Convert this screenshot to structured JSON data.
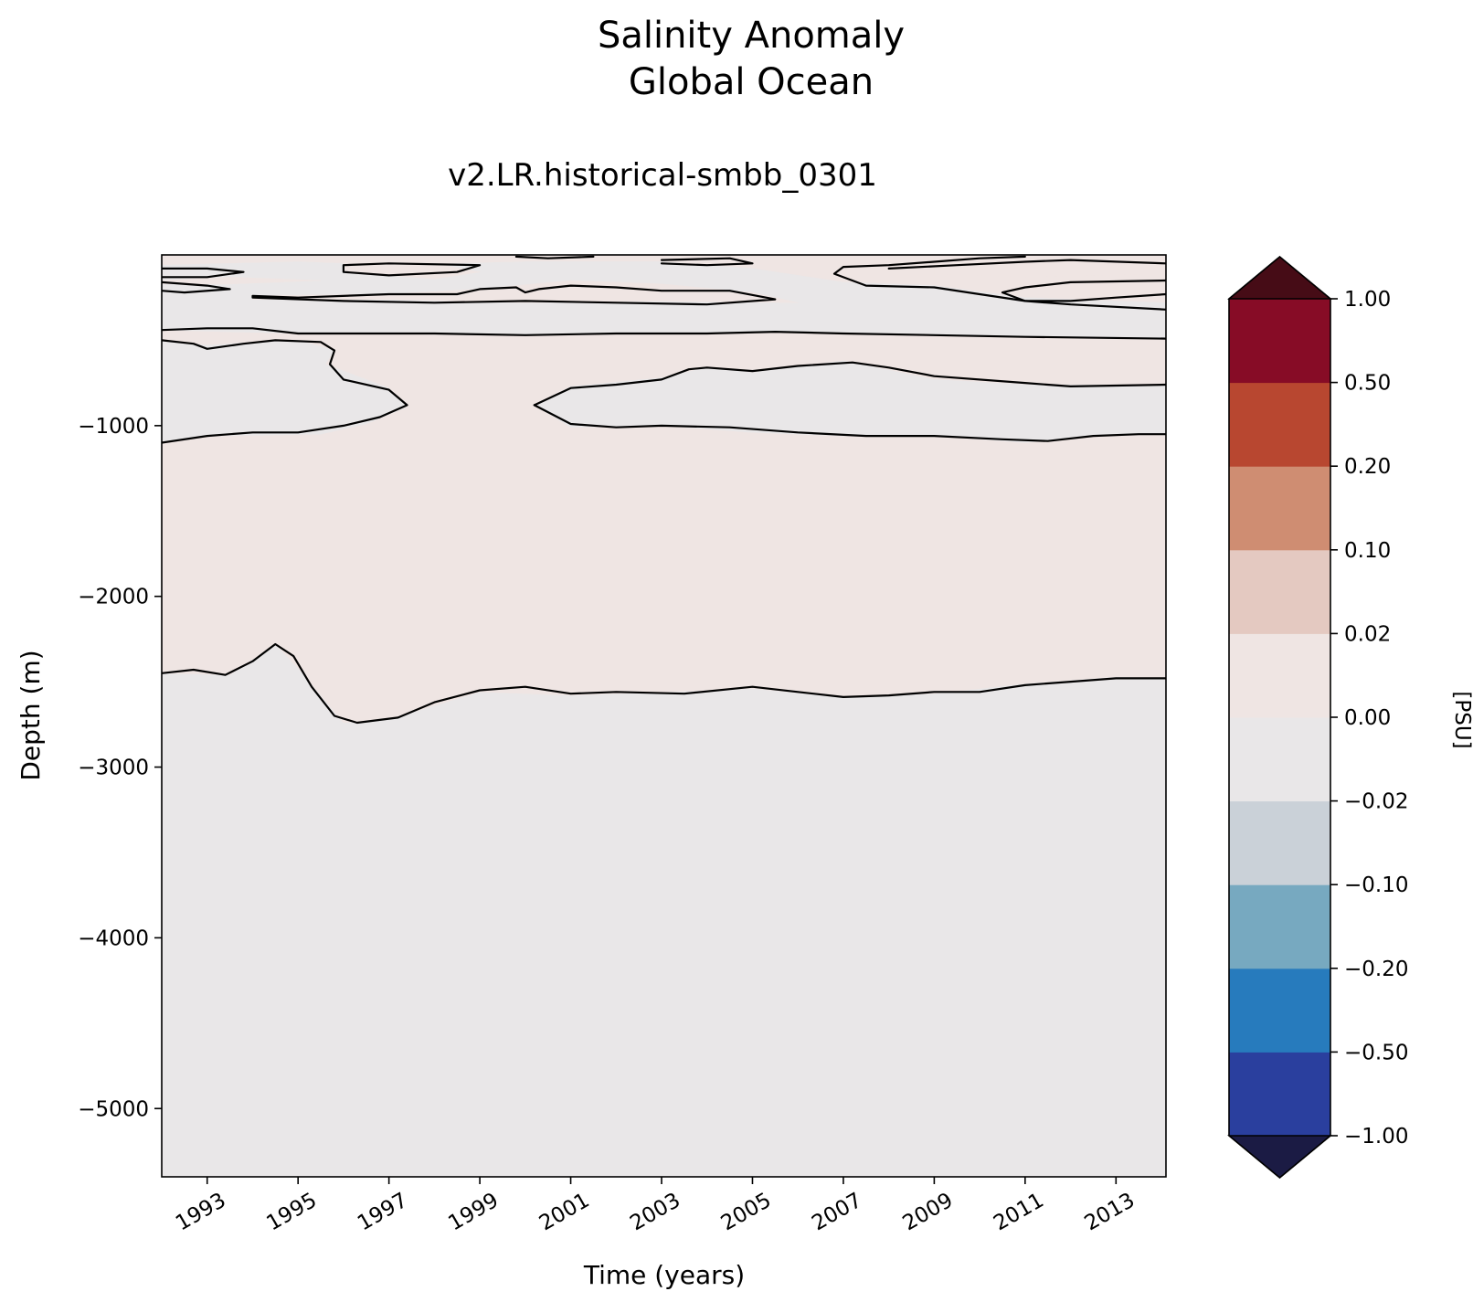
{
  "chart_data": {
    "type": "contour",
    "title_lines": [
      "Salinity Anomaly",
      "Global Ocean"
    ],
    "subtitle": "v2.LR.historical-smbb_0301",
    "xlabel": "Time (years)",
    "ylabel": "Depth (m)",
    "xlim": [
      1992.0,
      2014.1
    ],
    "ylim": [
      -5400,
      0
    ],
    "xticks": [
      1993,
      1995,
      1997,
      1999,
      2001,
      2003,
      2005,
      2007,
      2009,
      2011,
      2013
    ],
    "xtick_labels": [
      "1993",
      "1995",
      "1997",
      "1999",
      "2001",
      "2003",
      "2005",
      "2007",
      "2009",
      "2011",
      "2013"
    ],
    "yticks": [
      -1000,
      -2000,
      -3000,
      -4000,
      -5000
    ],
    "ytick_labels": [
      "−1000",
      "−2000",
      "−3000",
      "−4000",
      "−5000"
    ],
    "regions": [
      {
        "sign": "positive",
        "color": "#efe5e3",
        "points": [
          [
            1992.0,
            0
          ],
          [
            2014.1,
            0
          ],
          [
            2014.1,
            -2480
          ],
          [
            2013.0,
            -2470
          ],
          [
            2011.0,
            -2510
          ],
          [
            2009.0,
            -2570
          ],
          [
            2007.0,
            -2590
          ],
          [
            2005.0,
            -2540
          ],
          [
            2003.0,
            -2560
          ],
          [
            2001.0,
            -2580
          ],
          [
            1999.0,
            -2560
          ],
          [
            1997.0,
            -2720
          ],
          [
            1996.0,
            -2740
          ],
          [
            1995.0,
            -2420
          ],
          [
            1994.5,
            -2280
          ],
          [
            1993.5,
            -2460
          ],
          [
            1992.0,
            -2450
          ]
        ]
      },
      {
        "sign": "negative",
        "color": "#e9e7e8",
        "points": [
          [
            1992.0,
            -500
          ],
          [
            1993.0,
            -530
          ],
          [
            1994.5,
            -500
          ],
          [
            1995.0,
            -500
          ],
          [
            1995.8,
            -560
          ],
          [
            1995.6,
            -640
          ],
          [
            1997.0,
            -780
          ],
          [
            1997.4,
            -890
          ],
          [
            1996.5,
            -990
          ],
          [
            1995.5,
            -1050
          ],
          [
            1993.0,
            -1060
          ],
          [
            1992.0,
            -1100
          ]
        ]
      },
      {
        "sign": "negative",
        "color": "#e9e7e8",
        "points": [
          [
            2000.2,
            -880
          ],
          [
            2001.0,
            -770
          ],
          [
            2003.0,
            -720
          ],
          [
            2004.0,
            -660
          ],
          [
            2005.0,
            -690
          ],
          [
            2007.0,
            -620
          ],
          [
            2009.0,
            -730
          ],
          [
            2011.0,
            -760
          ],
          [
            2014.1,
            -760
          ],
          [
            2014.1,
            -1050
          ],
          [
            2013.0,
            -1050
          ],
          [
            2011.0,
            -1100
          ],
          [
            2009.0,
            -1060
          ],
          [
            2007.0,
            -1060
          ],
          [
            2005.0,
            -1040
          ],
          [
            2003.0,
            -1000
          ],
          [
            2001.0,
            -1010
          ],
          [
            2000.2,
            -880
          ]
        ]
      },
      {
        "sign": "negative",
        "color": "#e9e7e8",
        "points": [
          [
            1992.0,
            -440
          ],
          [
            1995.0,
            -460
          ],
          [
            2000.0,
            -470
          ],
          [
            2005.0,
            -450
          ],
          [
            2009.0,
            -470
          ],
          [
            2014.1,
            -490
          ],
          [
            2014.1,
            -280
          ],
          [
            2011.0,
            -250
          ],
          [
            2009.0,
            -180
          ],
          [
            2007.0,
            -160
          ],
          [
            2005.0,
            -80
          ],
          [
            2003.0,
            -40
          ],
          [
            2000.0,
            -40
          ],
          [
            1997.0,
            -60
          ],
          [
            1995.0,
            -40
          ],
          [
            1992.0,
            -60
          ]
        ]
      },
      {
        "sign": "positive",
        "color": "#efe5e3",
        "points": [
          [
            1994.0,
            -240
          ],
          [
            1997.0,
            -230
          ],
          [
            1999.0,
            -200
          ],
          [
            2001.0,
            -150
          ],
          [
            2003.0,
            -170
          ],
          [
            2005.0,
            -220
          ],
          [
            2006.0,
            -280
          ],
          [
            2003.0,
            -270
          ],
          [
            2000.0,
            -280
          ],
          [
            1997.0,
            -260
          ],
          [
            1994.0,
            -260
          ]
        ]
      },
      {
        "sign": "positive",
        "color": "#efe5e3",
        "points": [
          [
            2011.5,
            -210
          ],
          [
            2012.5,
            -170
          ],
          [
            2014.1,
            -150
          ],
          [
            2014.1,
            -210
          ],
          [
            2012.5,
            -230
          ],
          [
            2011.5,
            -230
          ]
        ]
      },
      {
        "sign": "positive",
        "color": "#efe5e3",
        "points": [
          [
            1996.0,
            -40
          ],
          [
            1998.0,
            -50
          ],
          [
            1999.0,
            -100
          ],
          [
            1998.0,
            -140
          ],
          [
            1996.0,
            -100
          ]
        ]
      },
      {
        "sign": "positive",
        "color": "#efe5e3",
        "points": [
          [
            2009.0,
            -60
          ],
          [
            2011.0,
            -50
          ],
          [
            2014.1,
            -60
          ],
          [
            2014.1,
            -110
          ],
          [
            2011.0,
            -130
          ],
          [
            2009.0,
            -110
          ]
        ]
      },
      {
        "sign": "positive",
        "color": "#efe5e3",
        "points": [
          [
            1992.0,
            -150
          ],
          [
            1993.5,
            -130
          ],
          [
            1995.5,
            -150
          ],
          [
            1993.5,
            -170
          ],
          [
            1992.0,
            -170
          ]
        ]
      }
    ],
    "contour_lines": [
      [
        [
          1992.0,
          -2450
        ],
        [
          1992.7,
          -2430
        ],
        [
          1993.4,
          -2460
        ],
        [
          1994.0,
          -2380
        ],
        [
          1994.5,
          -2280
        ],
        [
          1994.9,
          -2350
        ],
        [
          1995.3,
          -2530
        ],
        [
          1995.8,
          -2700
        ],
        [
          1996.3,
          -2740
        ],
        [
          1997.2,
          -2710
        ],
        [
          1998.0,
          -2620
        ],
        [
          1999.0,
          -2550
        ],
        [
          2000.0,
          -2530
        ],
        [
          2001.0,
          -2570
        ],
        [
          2002.0,
          -2560
        ],
        [
          2003.5,
          -2570
        ],
        [
          2005.0,
          -2530
        ],
        [
          2006.0,
          -2560
        ],
        [
          2007.0,
          -2590
        ],
        [
          2008.0,
          -2580
        ],
        [
          2009.0,
          -2560
        ],
        [
          2010.0,
          -2560
        ],
        [
          2011.0,
          -2520
        ],
        [
          2012.0,
          -2500
        ],
        [
          2013.0,
          -2480
        ],
        [
          2014.1,
          -2480
        ]
      ],
      [
        [
          1992.0,
          -1100
        ],
        [
          1993.0,
          -1060
        ],
        [
          1994.0,
          -1040
        ],
        [
          1995.0,
          -1040
        ],
        [
          1996.0,
          -1000
        ],
        [
          1996.8,
          -950
        ],
        [
          1997.4,
          -880
        ],
        [
          1997.0,
          -790
        ],
        [
          1996.0,
          -730
        ],
        [
          1995.7,
          -640
        ],
        [
          1995.8,
          -560
        ],
        [
          1995.5,
          -510
        ],
        [
          1994.5,
          -500
        ],
        [
          1993.8,
          -520
        ],
        [
          1993.0,
          -550
        ],
        [
          1992.7,
          -520
        ],
        [
          1992.0,
          -500
        ]
      ],
      [
        [
          2000.2,
          -880
        ],
        [
          2001.0,
          -780
        ],
        [
          2002.0,
          -760
        ],
        [
          2003.0,
          -730
        ],
        [
          2003.6,
          -670
        ],
        [
          2004.0,
          -660
        ],
        [
          2005.0,
          -680
        ],
        [
          2006.0,
          -650
        ],
        [
          2007.2,
          -630
        ],
        [
          2008.0,
          -660
        ],
        [
          2009.0,
          -710
        ],
        [
          2011.0,
          -750
        ],
        [
          2012.0,
          -770
        ],
        [
          2014.1,
          -760
        ]
      ],
      [
        [
          2000.2,
          -880
        ],
        [
          2001.0,
          -990
        ],
        [
          2002.0,
          -1010
        ],
        [
          2003.0,
          -1000
        ],
        [
          2004.5,
          -1010
        ],
        [
          2006.0,
          -1040
        ],
        [
          2007.5,
          -1060
        ],
        [
          2009.0,
          -1060
        ],
        [
          2010.5,
          -1080
        ],
        [
          2011.5,
          -1090
        ],
        [
          2012.5,
          -1060
        ],
        [
          2013.5,
          -1050
        ],
        [
          2014.1,
          -1050
        ]
      ],
      [
        [
          1992.0,
          -440
        ],
        [
          1993.0,
          -430
        ],
        [
          1994.0,
          -430
        ],
        [
          1995.0,
          -460
        ],
        [
          1996.0,
          -460
        ],
        [
          1998.0,
          -460
        ],
        [
          2000.0,
          -470
        ],
        [
          2002.0,
          -460
        ],
        [
          2004.0,
          -460
        ],
        [
          2005.5,
          -450
        ],
        [
          2007.0,
          -460
        ],
        [
          2009.0,
          -470
        ],
        [
          2011.0,
          -480
        ],
        [
          2014.1,
          -490
        ]
      ],
      [
        [
          2014.1,
          -320
        ],
        [
          2012.0,
          -290
        ],
        [
          2011.0,
          -270
        ],
        [
          2010.0,
          -230
        ],
        [
          2009.0,
          -190
        ],
        [
          2007.5,
          -180
        ],
        [
          2006.8,
          -110
        ],
        [
          2007.0,
          -70
        ],
        [
          2008.0,
          -60
        ],
        [
          2009.0,
          -40
        ],
        [
          2010.0,
          -20
        ],
        [
          2011.0,
          -10
        ]
      ],
      [
        [
          1994.0,
          -240
        ],
        [
          1995.0,
          -250
        ],
        [
          1997.0,
          -230
        ],
        [
          1998.5,
          -230
        ],
        [
          1999.0,
          -200
        ],
        [
          1999.8,
          -190
        ],
        [
          2000.0,
          -220
        ],
        [
          2000.3,
          -200
        ],
        [
          2001.0,
          -180
        ],
        [
          2002.0,
          -190
        ],
        [
          2003.0,
          -210
        ],
        [
          2004.5,
          -210
        ],
        [
          2005.5,
          -260
        ],
        [
          2004.0,
          -290
        ],
        [
          2002.0,
          -280
        ],
        [
          2000.0,
          -270
        ],
        [
          1998.0,
          -280
        ],
        [
          1996.0,
          -270
        ],
        [
          1994.0,
          -250
        ],
        [
          1994.0,
          -240
        ]
      ],
      [
        [
          2014.1,
          -150
        ],
        [
          2012.0,
          -160
        ],
        [
          2011.0,
          -190
        ],
        [
          2010.5,
          -220
        ],
        [
          2011.0,
          -270
        ],
        [
          2012.0,
          -270
        ],
        [
          2013.0,
          -250
        ],
        [
          2014.1,
          -230
        ]
      ],
      [
        [
          1992.0,
          -80
        ],
        [
          1993.0,
          -80
        ],
        [
          1993.8,
          -100
        ],
        [
          1993.0,
          -130
        ],
        [
          1992.0,
          -130
        ]
      ],
      [
        [
          1992.0,
          -160
        ],
        [
          1993.0,
          -180
        ],
        [
          1993.5,
          -200
        ],
        [
          1992.5,
          -220
        ],
        [
          1992.0,
          -210
        ]
      ],
      [
        [
          1996.0,
          -60
        ],
        [
          1997.0,
          -50
        ],
        [
          1999.0,
          -60
        ],
        [
          1998.5,
          -100
        ],
        [
          1997.0,
          -120
        ],
        [
          1996.0,
          -100
        ],
        [
          1996.0,
          -60
        ]
      ],
      [
        [
          2003.0,
          -30
        ],
        [
          2004.5,
          -20
        ],
        [
          2005.0,
          -50
        ],
        [
          2004.0,
          -60
        ],
        [
          2003.0,
          -50
        ]
      ],
      [
        [
          1999.8,
          -10
        ],
        [
          2000.5,
          -20
        ],
        [
          2001.5,
          -10
        ]
      ],
      [
        [
          2008.0,
          -80
        ],
        [
          2009.5,
          -60
        ],
        [
          2011.0,
          -40
        ],
        [
          2012.0,
          -30
        ],
        [
          2014.1,
          -50
        ]
      ]
    ],
    "colorbar": {
      "label": "[PSU]",
      "levels": [
        -1.0,
        -0.5,
        -0.2,
        -0.1,
        -0.02,
        0.0,
        0.02,
        0.1,
        0.2,
        0.5,
        1.0
      ],
      "tick_labels": [
        "−1.00",
        "−0.50",
        "−0.20",
        "−0.10",
        "−0.02",
        "0.00",
        "0.02",
        "0.10",
        "0.20",
        "0.50",
        "1.00"
      ],
      "colors": [
        "#2a3f9e",
        "#277bbd",
        "#77a9c0",
        "#cad1d8",
        "#e9e7e8",
        "#efe5e3",
        "#e4c9c1",
        "#cf8d72",
        "#b84730",
        "#870c26"
      ],
      "extend_low_color": "#1b1b44",
      "extend_high_color": "#460c16"
    }
  }
}
